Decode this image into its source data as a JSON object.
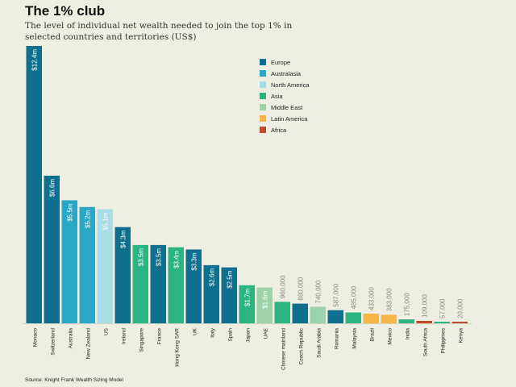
{
  "chart_data": {
    "type": "bar",
    "title": "The 1% club",
    "subtitle": "The level of individual net wealth needed to join the top 1% in selected countries and territories (US$)",
    "source": "Source: Knight Frank Wealth Sizing Model",
    "unit": "US$",
    "ylim": [
      0,
      12.4
    ],
    "grid": false,
    "legend_position": "top-right",
    "legend": [
      {
        "name": "Europe",
        "color": "#0f6f8e"
      },
      {
        "name": "Australasia",
        "color": "#2aa6c6"
      },
      {
        "name": "North America",
        "color": "#a9dde5"
      },
      {
        "name": "Asia",
        "color": "#2db483"
      },
      {
        "name": "Middle East",
        "color": "#9dd3a8"
      },
      {
        "name": "Latin America",
        "color": "#f7b545"
      },
      {
        "name": "Africa",
        "color": "#c04a2b"
      }
    ],
    "bars": [
      {
        "category": "Monaco",
        "value": 12.4,
        "label": "$12.4m",
        "region": "Europe"
      },
      {
        "category": "Switzerland",
        "value": 6.6,
        "label": "$6.6m",
        "region": "Europe"
      },
      {
        "category": "Australia",
        "value": 5.5,
        "label": "$5.5m",
        "region": "Australasia"
      },
      {
        "category": "New Zealand",
        "value": 5.2,
        "label": "$5.2m",
        "region": "Australasia"
      },
      {
        "category": "US",
        "value": 5.1,
        "label": "$5.1m",
        "region": "North America"
      },
      {
        "category": "Ireland",
        "value": 4.3,
        "label": "$4.3m",
        "region": "Europe"
      },
      {
        "category": "Singapore",
        "value": 3.5,
        "label": "$3.5m",
        "region": "Asia"
      },
      {
        "category": "France",
        "value": 3.5,
        "label": "$3.5m",
        "region": "Europe"
      },
      {
        "category": "Hong Kong SAR",
        "value": 3.4,
        "label": "$3.4m",
        "region": "Asia"
      },
      {
        "category": "UK",
        "value": 3.3,
        "label": "$3.3m",
        "region": "Europe"
      },
      {
        "category": "Italy",
        "value": 2.6,
        "label": "$2.6m",
        "region": "Europe"
      },
      {
        "category": "Spain",
        "value": 2.5,
        "label": "$2.5m",
        "region": "Europe"
      },
      {
        "category": "Japan",
        "value": 1.7,
        "label": "$1.7m",
        "region": "Asia"
      },
      {
        "category": "UAE",
        "value": 1.6,
        "label": "$1.6m",
        "region": "Middle East"
      },
      {
        "category": "Chinese mainland",
        "value": 0.96,
        "label": "960,000",
        "region": "Asia"
      },
      {
        "category": "Czech Republic",
        "value": 0.88,
        "label": "880,000",
        "region": "Europe"
      },
      {
        "category": "Saudi Arabia",
        "value": 0.74,
        "label": "740,000",
        "region": "Middle East"
      },
      {
        "category": "Romania",
        "value": 0.587,
        "label": "587,000",
        "region": "Europe"
      },
      {
        "category": "Malaysia",
        "value": 0.485,
        "label": "485,000",
        "region": "Asia"
      },
      {
        "category": "Brazil",
        "value": 0.433,
        "label": "433,000",
        "region": "Latin America"
      },
      {
        "category": "Mexico",
        "value": 0.383,
        "label": "383,000",
        "region": "Latin America"
      },
      {
        "category": "India",
        "value": 0.175,
        "label": "175,000",
        "region": "Asia"
      },
      {
        "category": "South Africa",
        "value": 0.109,
        "label": "109,000",
        "region": "Africa"
      },
      {
        "category": "Philippines",
        "value": 0.057,
        "label": "57,000",
        "region": "Asia"
      },
      {
        "category": "Kenya",
        "value": 0.02,
        "label": "20,000",
        "region": "Africa"
      }
    ]
  }
}
